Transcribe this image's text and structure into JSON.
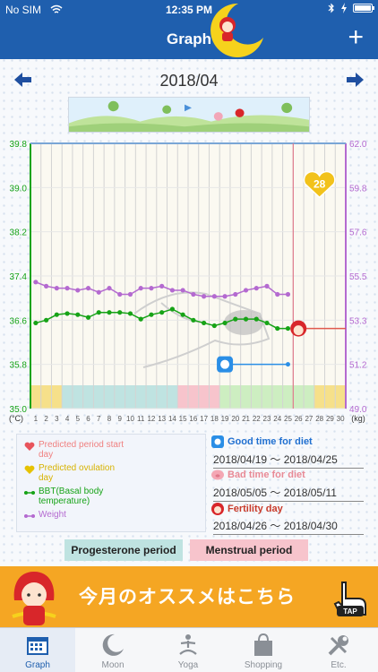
{
  "status_bar": {
    "carrier": "No SIM",
    "time": "12:35 PM"
  },
  "nav": {
    "title": "Graph",
    "add_label": "+"
  },
  "month": {
    "label": "2018/04"
  },
  "colors": {
    "brand": "#1f5fae",
    "bbt": "#17a317",
    "weight": "#b46ad0",
    "banner": "#f5a623"
  },
  "chart_data": {
    "type": "line",
    "x": [
      1,
      2,
      3,
      4,
      5,
      6,
      7,
      8,
      9,
      10,
      11,
      12,
      13,
      14,
      15,
      16,
      17,
      18,
      19,
      20,
      21,
      22,
      23,
      24,
      25,
      26,
      27,
      28,
      29,
      30
    ],
    "x_tick_labels": [
      "1",
      "2",
      "3",
      "4",
      "5",
      "6",
      "7",
      "8",
      "9",
      "10",
      "11",
      "12",
      "13",
      "14",
      "15",
      "16",
      "17",
      "18",
      "19",
      "20",
      "21",
      "22",
      "23",
      "24",
      "25",
      "26",
      "27",
      "28",
      "29",
      "30"
    ],
    "y_left_label": "(°C)",
    "y_right_label": "(kg)",
    "y_left_ticks": [
      "35.0",
      "35.8",
      "36.6",
      "37.4",
      "38.2",
      "39.0",
      "39.8"
    ],
    "y_right_ticks": [
      "49.0",
      "51.2",
      "53.3",
      "55.5",
      "57.6",
      "59.8",
      "62.0"
    ],
    "ylim_left": [
      35.0,
      39.8
    ],
    "ylim_right": [
      49.0,
      62.0
    ],
    "series": [
      {
        "name": "BBT(Basal body temperature)",
        "axis": "left",
        "color": "#17a317",
        "values": [
          36.55,
          36.6,
          36.7,
          36.72,
          36.7,
          36.65,
          36.74,
          36.74,
          36.74,
          36.72,
          36.62,
          36.7,
          36.74,
          36.8,
          36.7,
          36.6,
          36.55,
          36.5,
          36.55,
          36.62,
          36.62,
          36.62,
          36.55,
          36.45,
          36.45,
          null,
          null,
          null,
          null,
          null
        ]
      },
      {
        "name": "Weight",
        "axis": "right",
        "color": "#b46ad0",
        "values": [
          55.2,
          55.0,
          54.9,
          54.9,
          54.8,
          54.9,
          54.7,
          54.9,
          54.6,
          54.6,
          54.9,
          54.9,
          55.0,
          54.8,
          54.8,
          54.6,
          54.5,
          54.5,
          54.5,
          54.6,
          54.8,
          54.9,
          55.0,
          54.6,
          54.6,
          null,
          null,
          null,
          null,
          null
        ]
      }
    ],
    "predicted_period_start_day": 28,
    "today": 25,
    "fertility_day": 19,
    "menstrual_marker_day": 26,
    "grid": true
  },
  "legend": {
    "items": [
      {
        "label": "Predicted period start day",
        "color": "#f08080",
        "icon": "heart-icon"
      },
      {
        "label": "Predicted ovulation day",
        "color": "#d7b300",
        "icon": "heart-icon"
      },
      {
        "label": "BBT(Basal body temperature)",
        "color": "#17a317",
        "icon": "line-dot-icon"
      },
      {
        "label": "Weight",
        "color": "#b46ad0",
        "icon": "line-dot-icon"
      }
    ]
  },
  "diet": {
    "good_label": "Good time for diet",
    "good_dates": "2018/04/19 〜 2018/04/25",
    "bad_label": "Bad time for diet",
    "bad_dates": "2018/05/05 〜 2018/05/11",
    "fertility_label": "Fertility day",
    "fertility_dates": "2018/04/26 〜 2018/04/30"
  },
  "periods": {
    "progesterone_label": "Progesterone period",
    "menstrual_label": "Menstrual period"
  },
  "banner": {
    "text": "今月のオススメはこちら",
    "tap_label": "TAP"
  },
  "tabs": [
    {
      "label": "Graph",
      "icon": "calendar-graph-icon",
      "active": true
    },
    {
      "label": "Moon",
      "icon": "moon-icon",
      "active": false
    },
    {
      "label": "Yoga",
      "icon": "yoga-icon",
      "active": false
    },
    {
      "label": "Shopping",
      "icon": "shopping-bag-icon",
      "active": false
    },
    {
      "label": "Etc.",
      "icon": "tools-icon",
      "active": false
    }
  ]
}
